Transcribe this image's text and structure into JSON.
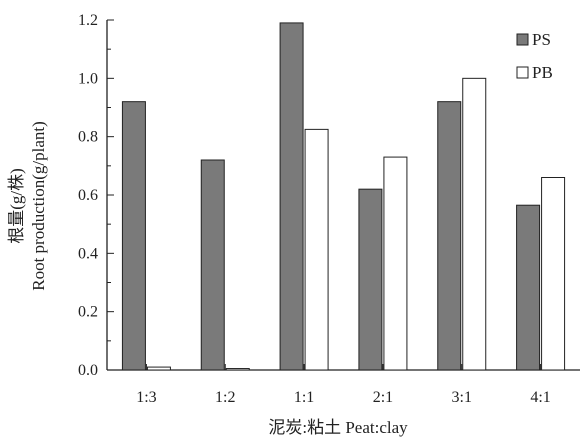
{
  "chart_data": {
    "type": "bar",
    "xlabel": "泥炭:粘土 Peat:clay",
    "ylabel_cn": "根量(g/株)",
    "ylabel_en": "Root production(g/plant)",
    "categories": [
      "1:3",
      "1:2",
      "1:1",
      "2:1",
      "3:1",
      "4:1"
    ],
    "series": [
      {
        "name": "PS",
        "values": [
          0.92,
          0.72,
          1.19,
          0.62,
          0.92,
          0.565
        ],
        "color": "#7a7a7a"
      },
      {
        "name": "PB",
        "values": [
          0.01,
          0.005,
          0.825,
          0.73,
          1.0,
          0.66
        ],
        "color": "#ffffff"
      }
    ],
    "ylim": [
      0,
      1.2
    ],
    "yticks": [
      "0.0",
      "0.2",
      "0.4",
      "0.6",
      "0.8",
      "1.0",
      "1.2"
    ],
    "grid": false,
    "legend": "top-right"
  }
}
